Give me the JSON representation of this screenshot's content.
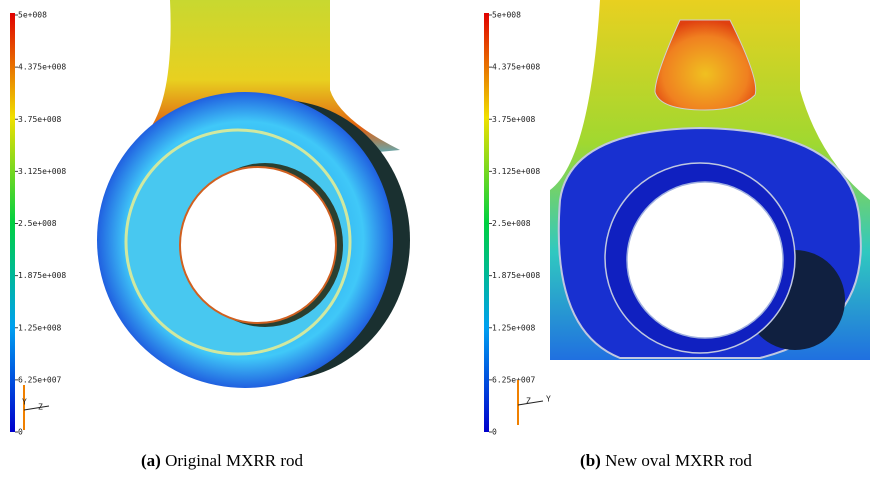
{
  "panels": [
    {
      "colorbar_labels": [
        "5e+008",
        "4.375e+008",
        "3.75e+008",
        "3.125e+008",
        "2.5e+008",
        "1.875e+008",
        "1.25e+008",
        "6.25e+007",
        "0"
      ],
      "axis_labels": [
        "Y",
        "Z"
      ],
      "caption": {
        "tag": "(a)",
        "text": "Original MXRR rod"
      }
    },
    {
      "colorbar_labels": [
        "5e+008",
        "4.375e+008",
        "3.75e+008",
        "3.125e+008",
        "2.5e+008",
        "1.875e+008",
        "1.25e+008",
        "6.25e+007",
        "0"
      ],
      "axis_labels": [
        "Z",
        "Y"
      ],
      "caption": {
        "tag": "(b)",
        "text": "New oval MXRR rod"
      }
    }
  ]
}
